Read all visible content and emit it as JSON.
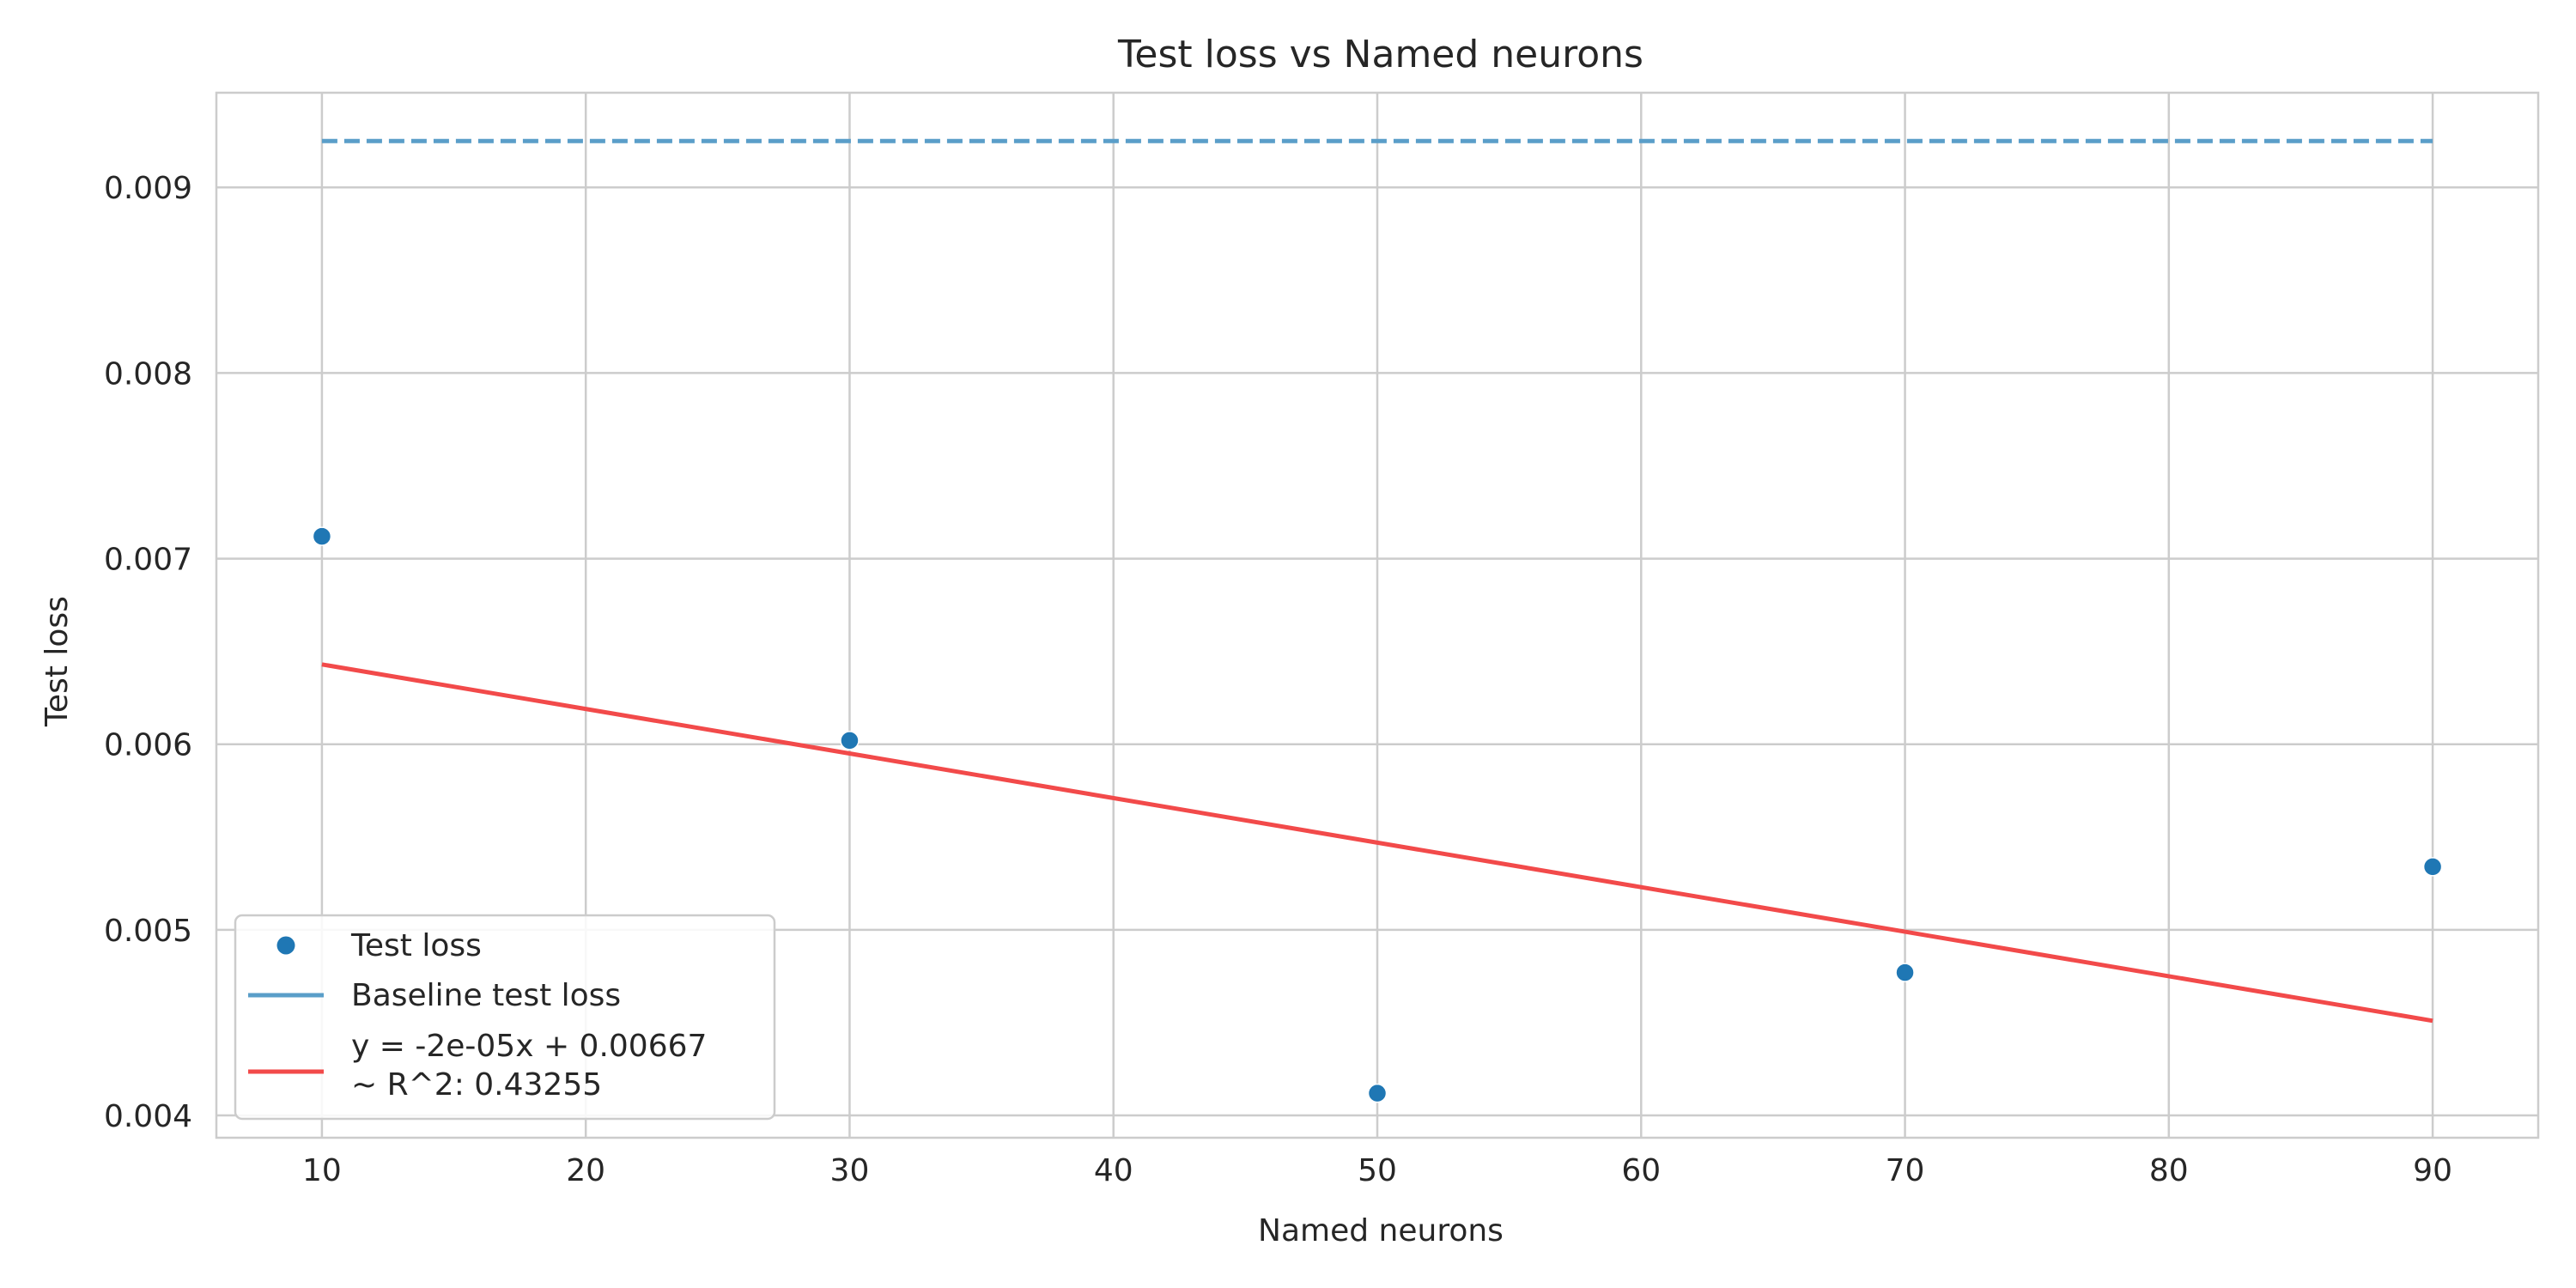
{
  "chart_data": {
    "type": "scatter",
    "title": "Test loss vs Named neurons",
    "xlabel": "Named neurons",
    "ylabel": "Test loss",
    "xlim": [
      6,
      94
    ],
    "ylim": [
      0.00388,
      0.00951
    ],
    "x_ticks": [
      10,
      20,
      30,
      40,
      50,
      60,
      70,
      80,
      90
    ],
    "x_tick_labels": [
      "10",
      "20",
      "30",
      "40",
      "50",
      "60",
      "70",
      "80",
      "90"
    ],
    "y_ticks": [
      0.004,
      0.005,
      0.006,
      0.007,
      0.008,
      0.009
    ],
    "y_tick_labels": [
      "0.004",
      "0.005",
      "0.006",
      "0.007",
      "0.008",
      "0.009"
    ],
    "grid": true,
    "legend_position": "lower-left",
    "series": [
      {
        "name": "Test loss",
        "kind": "scatter",
        "color": "#1f77b4",
        "x": [
          10,
          30,
          50,
          70,
          90
        ],
        "y": [
          0.00712,
          0.00602,
          0.00412,
          0.00477,
          0.00534
        ]
      },
      {
        "name": "Baseline test loss",
        "kind": "dashed-line",
        "color": "#5a9ec9",
        "x": [
          10,
          90
        ],
        "y": [
          0.00925,
          0.00925
        ]
      },
      {
        "name": "y = -2e-05x + 0.00667\n~ R^2: 0.43255",
        "kind": "line",
        "color": "#f24a4a",
        "x": [
          10,
          90
        ],
        "y": [
          0.00643,
          0.00451
        ]
      }
    ],
    "legend": [
      {
        "label": "Test loss",
        "marker": "dot",
        "color": "#1f77b4"
      },
      {
        "label": "Baseline test loss",
        "marker": "line",
        "color": "#5a9ec9"
      },
      {
        "label_lines": [
          "y = -2e-05x + 0.00667",
          "~ R^2: 0.43255"
        ],
        "marker": "line",
        "color": "#f24a4a"
      }
    ]
  }
}
